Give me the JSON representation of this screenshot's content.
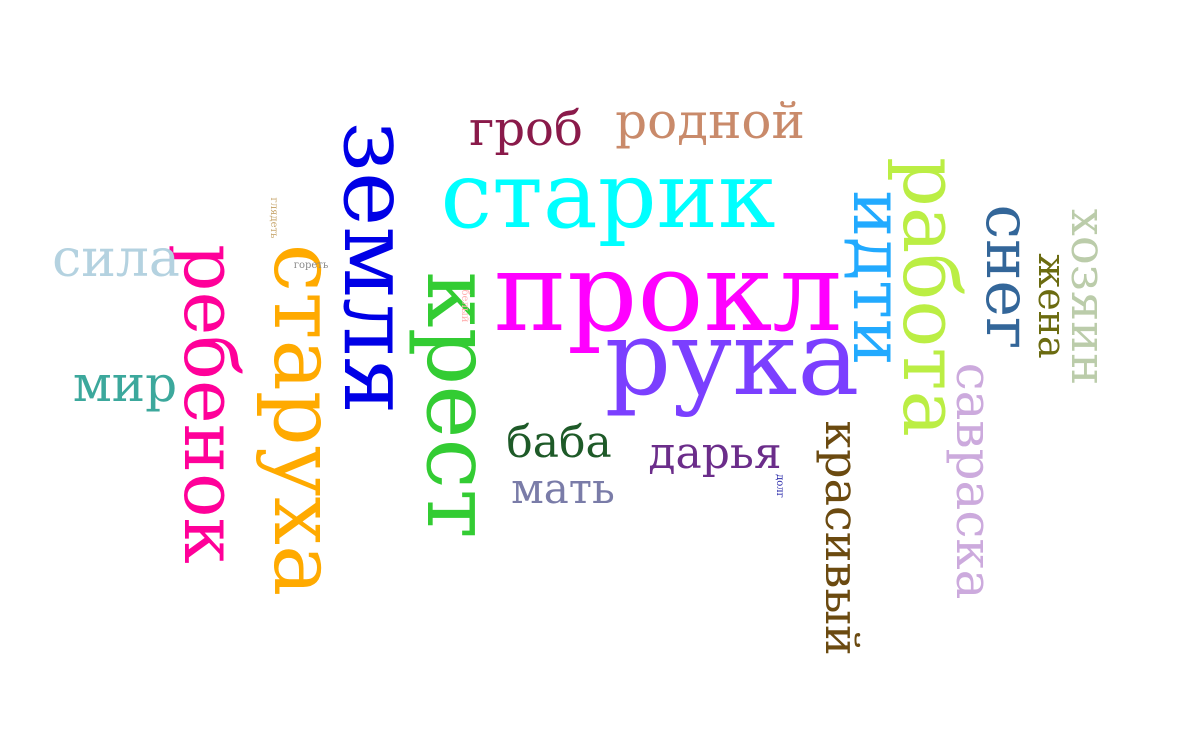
{
  "words": [
    {
      "text": "прокл",
      "color": "#ff00ff",
      "orient": "h"
    },
    {
      "text": "земля",
      "color": "#0000e6",
      "orient": "v"
    },
    {
      "text": "старик",
      "color": "#00ffff",
      "orient": "h"
    },
    {
      "text": "рука",
      "color": "#7b3fff",
      "orient": "h"
    },
    {
      "text": "крест",
      "color": "#33cc33",
      "orient": "v"
    },
    {
      "text": "старуха",
      "color": "#ffaa00",
      "orient": "v"
    },
    {
      "text": "ребенок",
      "color": "#ff0099",
      "orient": "v"
    },
    {
      "text": "работа",
      "color": "#bbee44",
      "orient": "v"
    },
    {
      "text": "идти",
      "color": "#22aaff",
      "orient": "v"
    },
    {
      "text": "снег",
      "color": "#336699",
      "orient": "v"
    },
    {
      "text": "гроб",
      "color": "#8a1a4a",
      "orient": "h"
    },
    {
      "text": "родной",
      "color": "#c98a6a",
      "orient": "h"
    },
    {
      "text": "хозяин",
      "color": "#bbccaa",
      "orient": "v"
    },
    {
      "text": "жена",
      "color": "#6b6b10",
      "orient": "v"
    },
    {
      "text": "саврaска",
      "color": "#ccaadd",
      "orient": "v"
    },
    {
      "text": "красивый",
      "color": "#6b4a10",
      "orient": "v"
    },
    {
      "text": "сила",
      "color": "#b4d2e0",
      "orient": "h"
    },
    {
      "text": "мир",
      "color": "#3ca89c",
      "orient": "h"
    },
    {
      "text": "баба",
      "color": "#1e5a28",
      "orient": "h"
    },
    {
      "text": "дарья",
      "color": "#6b2d8a",
      "orient": "h"
    },
    {
      "text": "мать",
      "color": "#7a7ca8",
      "orient": "h"
    },
    {
      "text": "глядеть",
      "color": "#c8a870",
      "orient": "v"
    },
    {
      "text": "гореть",
      "color": "#8a8a8a",
      "orient": "h"
    },
    {
      "text": "белый",
      "color": "#ffb0b0",
      "orient": "v"
    },
    {
      "text": "долг",
      "color": "#2a2aaa",
      "orient": "v"
    }
  ]
}
